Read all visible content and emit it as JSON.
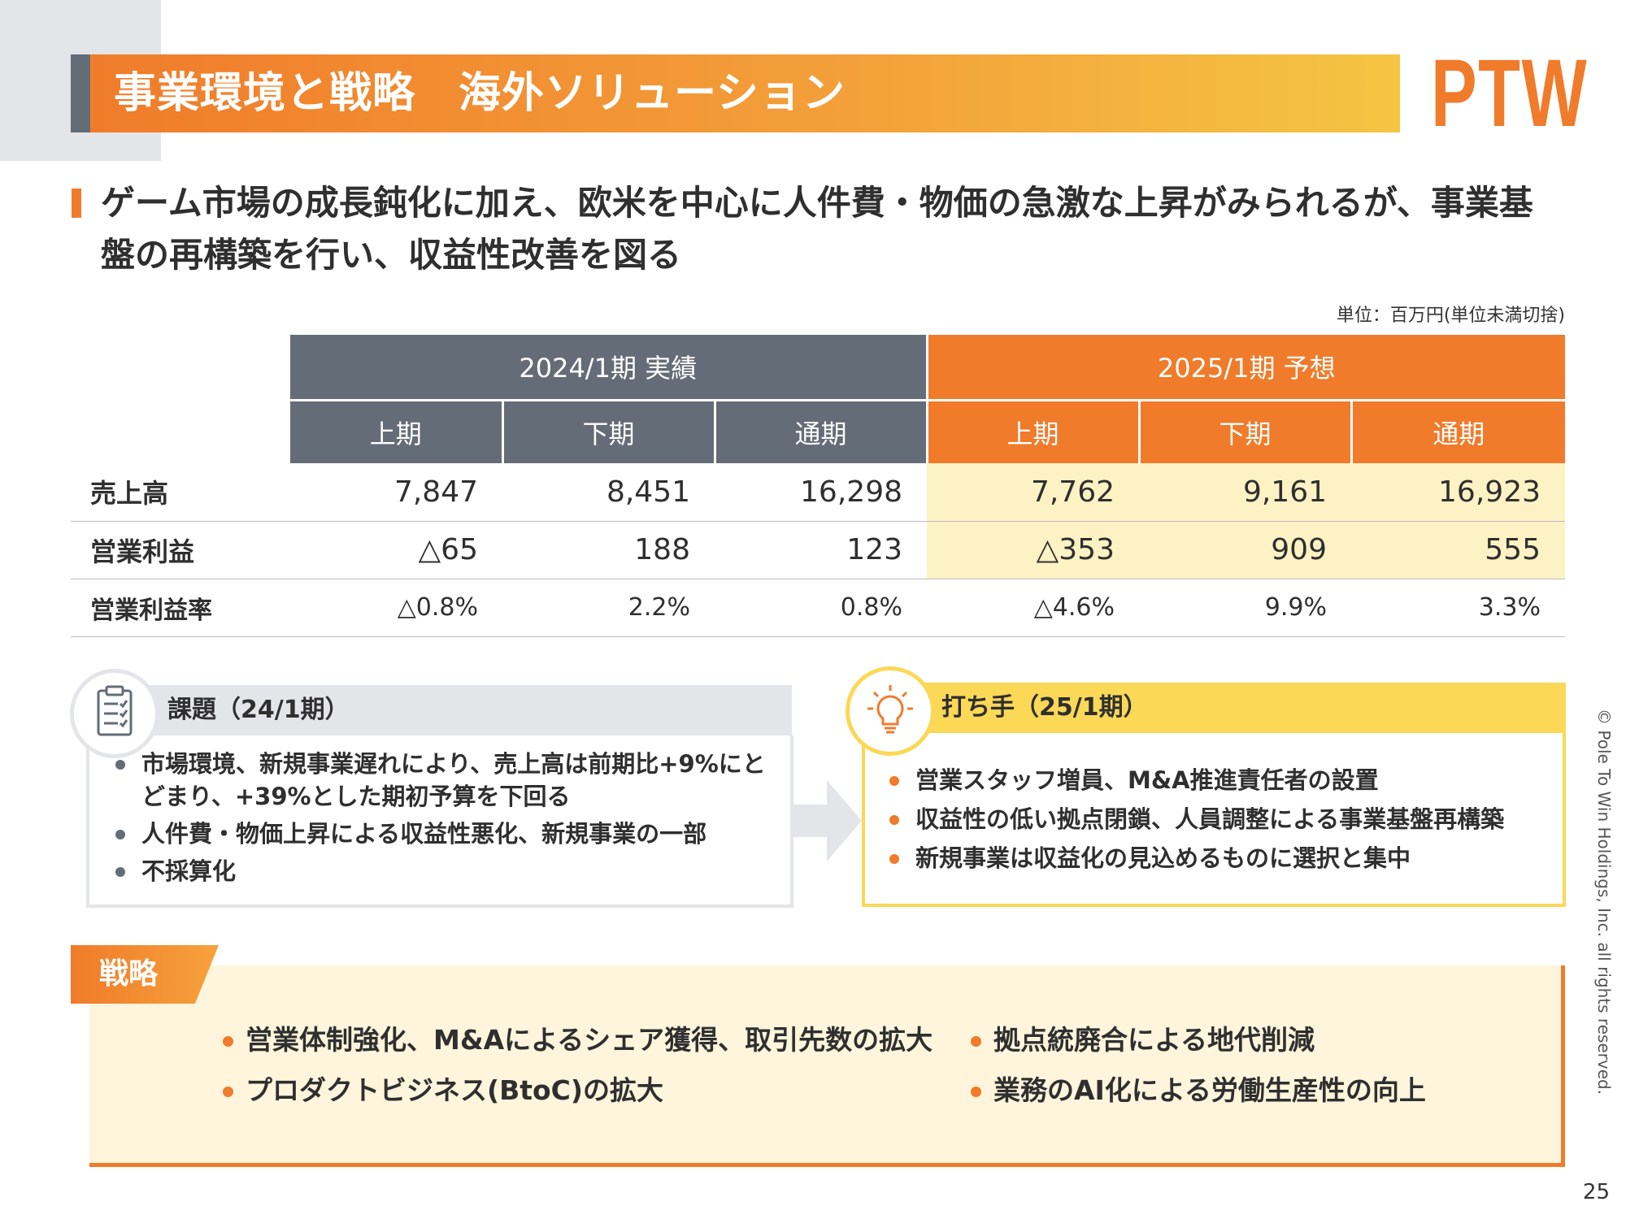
{
  "header": {
    "title": "事業環境と戦略　海外ソリューション",
    "logo_text": "PTW"
  },
  "headline": "ゲーム市場の成長鈍化に加え、欧米を中心に人件費・物価の急激な上昇がみられるが、事業基盤の再構築を行い、収益性改善を図る",
  "table": {
    "unit_note": "単位：百万円(単位未満切捨)",
    "period_actual": "2024/1期 実績",
    "period_forecast": "2025/1期 予想",
    "sub_headers": [
      "上期",
      "下期",
      "通期",
      "上期",
      "下期",
      "通期"
    ],
    "rows": [
      {
        "label": "売上高",
        "values": [
          "7,847",
          "8,451",
          "16,298",
          "7,762",
          "9,161",
          "16,923"
        ]
      },
      {
        "label": "営業利益",
        "values": [
          "△65",
          "188",
          "123",
          "△353",
          "909",
          "555"
        ]
      },
      {
        "label": "営業利益率",
        "values": [
          "△0.8%",
          "2.2%",
          "0.8%",
          "△4.6%",
          "9.9%",
          "3.3%"
        ]
      }
    ]
  },
  "issues": {
    "title": "課題（24/1期）",
    "icon": "checklist-icon",
    "items": [
      "市場環境、新規事業遅れにより、売上高は前期比+9%にとどまり、+39%とした期初予算を下回る",
      "人件費・物価上昇による収益性悪化、新規事業の一部",
      "不採算化"
    ]
  },
  "measures": {
    "title": "打ち手（25/1期）",
    "icon": "lightbulb-icon",
    "items": [
      "営業スタッフ増員、M&A推進責任者の設置",
      "収益性の低い拠点閉鎖、人員調整による事業基盤再構築",
      "新規事業は収益化の見込めるものに選択と集中"
    ]
  },
  "strategy": {
    "label": "戦略",
    "items": [
      "営業体制強化、M&Aによるシェア獲得、取引先数の拡大",
      "プロダクトビジネス(BtoC)の拡大",
      "拠点統廃合による地代削減",
      "業務のAI化による労働生産性の向上"
    ]
  },
  "footer": {
    "copyright": "© Pole To Win Holdings, Inc. all rights reserved.",
    "page_number": "25"
  },
  "colors": {
    "accent_orange": "#f07b2a",
    "header_gray": "#646c78",
    "forecast_highlight": "#fdf2c4",
    "measures_yellow": "#fbd856"
  }
}
